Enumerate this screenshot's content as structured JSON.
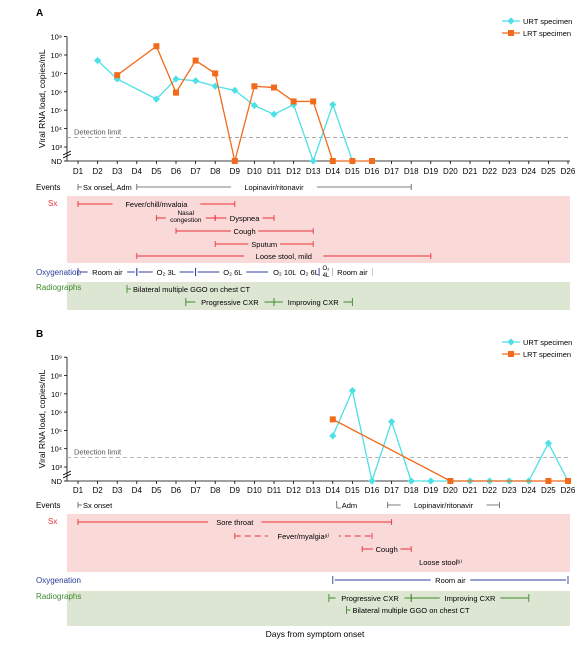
{
  "figure": {
    "xlabel": "Days from symptom onset"
  },
  "days": [
    "D1",
    "D2",
    "D3",
    "D4",
    "D5",
    "D6",
    "D7",
    "D8",
    "D9",
    "D10",
    "D11",
    "D12",
    "D13",
    "D14",
    "D15",
    "D16",
    "D17",
    "D18",
    "D19",
    "D20",
    "D21",
    "D22",
    "D23",
    "D24",
    "D25",
    "D26"
  ],
  "colors": {
    "urt": "#4DE0E6",
    "lrt": "#F26A1B",
    "sx": "#E8343A",
    "sx_bg": "#FAD9D9",
    "oxy": "#2B3D9A",
    "radio": "#3E8A2E",
    "radio_bg": "#DDE6D2",
    "detection": "#9E9E9E"
  },
  "row_labels": {
    "events": "Events",
    "sx": "Sx",
    "oxygenation": "Oxygenation",
    "radiographs": "Radiographs"
  },
  "chart_data": [
    {
      "type": "line",
      "panel": "A",
      "ylabel": "Viral RNA load, copies/mL",
      "yscale": "log",
      "yticks": [
        "ND",
        "10³",
        "10⁴",
        "10⁵",
        "10⁶",
        "10⁷",
        "10⁸",
        "10⁹"
      ],
      "detection_limit": {
        "label": "Detection limit",
        "value": 3300
      },
      "legend": [
        "URT specimen",
        "LRT specimen"
      ],
      "legend_position": "top-right",
      "series": [
        {
          "name": "URT specimen",
          "x": [
            2,
            3,
            5,
            6,
            7,
            8,
            9,
            10,
            11,
            12,
            13,
            14,
            15
          ],
          "y": [
            50000000,
            5000000,
            400000,
            5000000,
            4000000,
            2000000,
            1200000,
            180000,
            60000,
            200000,
            "ND",
            200000,
            "ND"
          ]
        },
        {
          "name": "LRT specimen",
          "x": [
            3,
            5,
            6,
            7,
            8,
            9,
            10,
            11,
            12,
            13,
            14,
            15,
            16
          ],
          "y": [
            8000000,
            300000000,
            900000,
            50000000,
            10000000,
            "ND",
            2000000,
            1700000,
            300000,
            300000,
            "ND",
            "ND",
            "ND"
          ]
        }
      ],
      "events": [
        {
          "label": "Sx onset",
          "start": 1,
          "end": 1
        },
        {
          "label": "Adm",
          "start": 2.7,
          "end": 2.7
        },
        {
          "label": "Lopinavir/ritonavir",
          "start": 4,
          "end": 18
        }
      ],
      "symptoms": [
        {
          "label": "Fever/chill/myalgia",
          "start": 1,
          "end": 9
        },
        {
          "label": "Nasal congestion",
          "line1": "Nasal",
          "line2": "congestion",
          "start": 5,
          "end": 8
        },
        {
          "label": "Dyspnea",
          "start": 8,
          "end": 11
        },
        {
          "label": "Cough",
          "start": 6,
          "end": 13
        },
        {
          "label": "Sputum",
          "start": 8,
          "end": 13
        },
        {
          "label": "Loose stool, mild",
          "start": 4,
          "end": 19
        }
      ],
      "oxygenation": [
        {
          "label": "Room air",
          "start": 1,
          "end": 4
        },
        {
          "label": "O₂ 3L",
          "start": 4,
          "end": 7
        },
        {
          "label": "O₂ 6L",
          "start": 7,
          "end": 10.8
        },
        {
          "label": "O₂ 10L",
          "start": 10.8,
          "end": 12.3
        },
        {
          "label": "O₂ 6L",
          "start": 12.3,
          "end": 13.3
        },
        {
          "label": "O₂ 4L",
          "line1": "O₂",
          "line2": "4L",
          "start": 13.3,
          "end": 14
        },
        {
          "label": "Room air",
          "start": 14,
          "end": 16
        }
      ],
      "radiographs": [
        {
          "label": "Bilateral multiple GGO on chest CT",
          "start": 3.5,
          "end": 3.5
        },
        {
          "label": "Progressive CXR",
          "start": 6.5,
          "end": 11
        },
        {
          "label": "Improving CXR",
          "start": 11,
          "end": 15
        }
      ]
    },
    {
      "type": "line",
      "panel": "B",
      "ylabel": "Viral RNA load, copies/mL",
      "yscale": "log",
      "yticks": [
        "ND",
        "10³",
        "10⁴",
        "10⁵",
        "10⁶",
        "10⁷",
        "10⁸",
        "10⁹"
      ],
      "detection_limit": {
        "label": "Detection limit",
        "value": 3300
      },
      "legend": [
        "URT specimen",
        "LRT specimen"
      ],
      "legend_position": "top-right",
      "series": [
        {
          "name": "URT specimen",
          "x": [
            14,
            15,
            16,
            17,
            18,
            19,
            20,
            21,
            22,
            23,
            24,
            25,
            26
          ],
          "y": [
            50000,
            15000000,
            "ND",
            300000,
            "ND",
            "ND",
            "ND",
            "ND",
            "ND",
            "ND",
            "ND",
            20000,
            "ND"
          ]
        },
        {
          "name": "LRT specimen",
          "x": [
            14,
            20,
            25,
            26
          ],
          "y": [
            400000,
            "ND",
            "ND",
            "ND"
          ]
        }
      ],
      "events": [
        {
          "label": "Sx onset",
          "start": 1,
          "end": 1
        },
        {
          "label": "Adm",
          "start": 14.2,
          "end": 14.2
        },
        {
          "label": "Lopinavir/ritonavir",
          "start": 16.8,
          "end": 22.5
        }
      ],
      "symptoms": [
        {
          "label": "Sore throat",
          "start": 1,
          "end": 17
        },
        {
          "label": "Fever/myalgiaᵃ⁾",
          "start": 9,
          "end": 16
        },
        {
          "label": "Cough",
          "start": 15.5,
          "end": 18
        },
        {
          "label": "Loose stoolᵇ⁾",
          "start": 18,
          "end": 21
        }
      ],
      "oxygenation": [
        {
          "label": "Room air",
          "start": 14,
          "end": 26
        }
      ],
      "radiographs": [
        {
          "label": "Progressive CXR",
          "start": 13.8,
          "end": 18
        },
        {
          "label": "Improving CXR",
          "start": 18,
          "end": 24
        },
        {
          "label": "Bilateral multiple GGO on chest CT",
          "start": 14.7,
          "end": 14.7
        }
      ]
    }
  ]
}
